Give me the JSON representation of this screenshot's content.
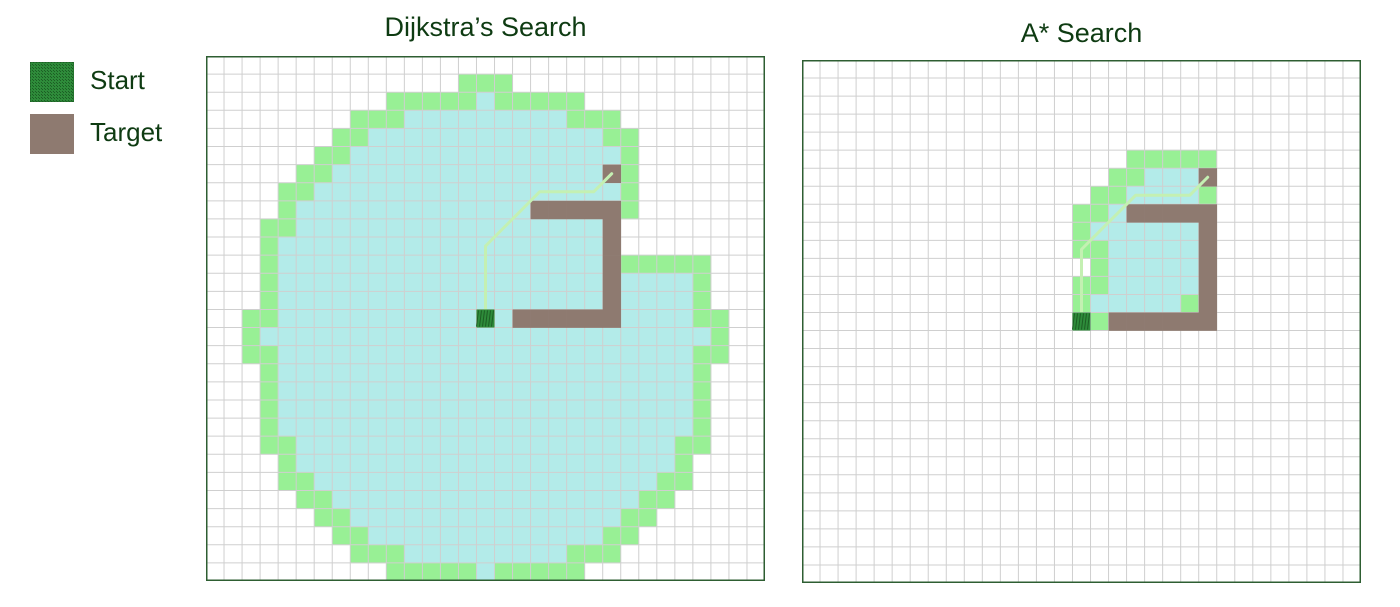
{
  "legend": {
    "start_label": "Start",
    "target_label": "Target"
  },
  "colors": {
    "start": "#2e8b3a",
    "start_dark": "#1c5e24",
    "target": "#8e7a70",
    "explored": "#b3ebe9",
    "frontier": "#98f095",
    "gridline": "#cfcfcf",
    "border": "#2e5e32",
    "path": "#c4f0b2",
    "text": "#0e3b12"
  },
  "panels": {
    "dijkstra": {
      "title": "Dijkstra’s Search"
    },
    "astar": {
      "title": "A* Search"
    }
  }
}
